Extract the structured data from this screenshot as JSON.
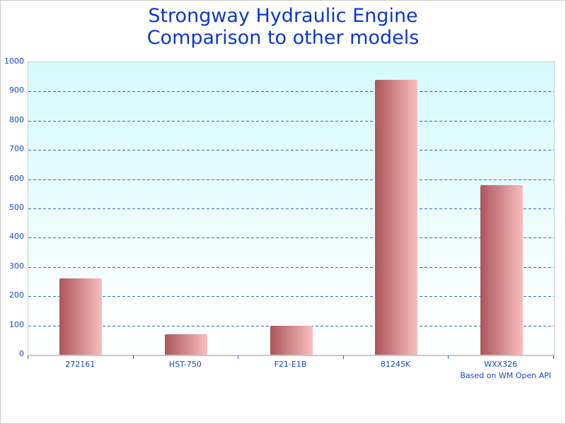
{
  "title": {
    "line1": "Strongway Hydraulic Engine",
    "line2": "Comparison to other models"
  },
  "footer": "Based on WM Open API",
  "colors": {
    "title_text": "#0d38c9",
    "axis_text": "#1348c4",
    "gridline": "#3465c3",
    "tick": "#2e62c4",
    "bar_gradient_left": "#ac555b",
    "bar_gradient_right": "#f9bebe",
    "plot_bg_top": "#d6fafc",
    "plot_bg_bottom": "#ffffff",
    "plot_border": "#c8d2d4"
  },
  "chart_data": {
    "type": "bar",
    "categories": [
      "272161",
      "HST-750",
      "F21-E1B",
      "81245K",
      "WXX326"
    ],
    "values": [
      260,
      70,
      100,
      940,
      580
    ],
    "title": "Strongway Hydraulic Engine Comparison to other models",
    "xlabel": "",
    "ylabel": "",
    "ylim": [
      0,
      1000
    ],
    "ytick_step": 100,
    "yticks": [
      0,
      100,
      200,
      300,
      400,
      500,
      600,
      700,
      800,
      900,
      1000
    ],
    "grid": "horizontal-dashed",
    "legend": "none",
    "annotation": "Based on WM Open API"
  }
}
